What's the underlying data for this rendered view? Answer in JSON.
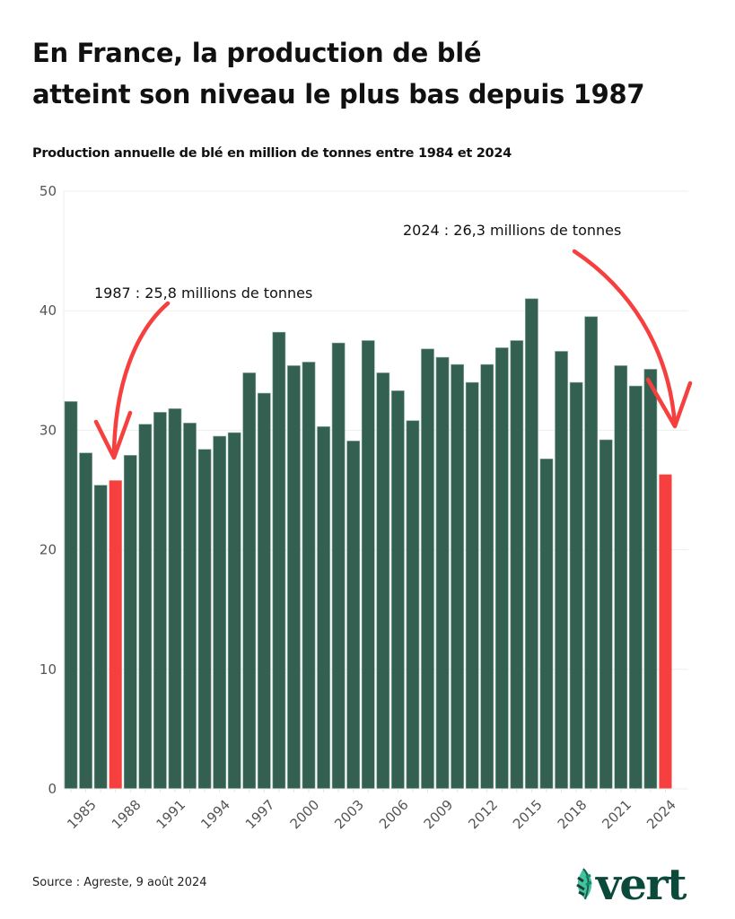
{
  "header": {
    "title_line1": "En France, la production de blé",
    "title_line2": "atteint son niveau le plus bas depuis 1987",
    "subtitle": "Production annuelle de blé en million de tonnes entre 1984 et 2024"
  },
  "chart_data": {
    "type": "bar",
    "title": "Production annuelle de blé en million de tonnes entre 1984 et 2024",
    "xlabel": "",
    "ylabel": "",
    "ylim": [
      0,
      50
    ],
    "yticks": [
      0,
      10,
      20,
      30,
      40,
      50
    ],
    "grid": true,
    "categories": [
      1984,
      1985,
      1986,
      1987,
      1988,
      1989,
      1990,
      1991,
      1992,
      1993,
      1994,
      1995,
      1996,
      1997,
      1998,
      1999,
      2000,
      2001,
      2002,
      2003,
      2004,
      2005,
      2006,
      2007,
      2008,
      2009,
      2010,
      2011,
      2012,
      2013,
      2014,
      2015,
      2016,
      2017,
      2018,
      2019,
      2020,
      2021,
      2022,
      2023,
      2024
    ],
    "xtick_labels": [
      "1985",
      "1988",
      "1991",
      "1994",
      "1997",
      "2000",
      "2003",
      "2006",
      "2009",
      "2012",
      "2015",
      "2018",
      "2021",
      "2024"
    ],
    "values": [
      32.4,
      28.1,
      25.4,
      25.8,
      27.9,
      30.5,
      31.5,
      31.8,
      30.6,
      28.4,
      29.5,
      29.8,
      34.8,
      33.1,
      38.2,
      35.4,
      35.7,
      30.3,
      37.3,
      29.1,
      37.5,
      34.8,
      33.3,
      30.8,
      36.8,
      36.1,
      35.5,
      34.0,
      35.5,
      36.9,
      37.5,
      41.0,
      27.6,
      36.6,
      34.0,
      39.5,
      29.2,
      35.4,
      33.7,
      35.1,
      26.3
    ],
    "highlighted": [
      1987,
      2024
    ],
    "colors": {
      "bar": "#346052",
      "highlight": "#f6403f",
      "grid": "#eeeeee",
      "arrow": "#f6403f"
    },
    "annotations": [
      {
        "year": 1987,
        "text": "1987 : 25,8 millions de tonnes"
      },
      {
        "year": 2024,
        "text": "2024 : 26,3 millions de tonnes"
      }
    ]
  },
  "footer": {
    "source": "Source : Agreste, 9 août 2024",
    "logo_text": "vert"
  }
}
